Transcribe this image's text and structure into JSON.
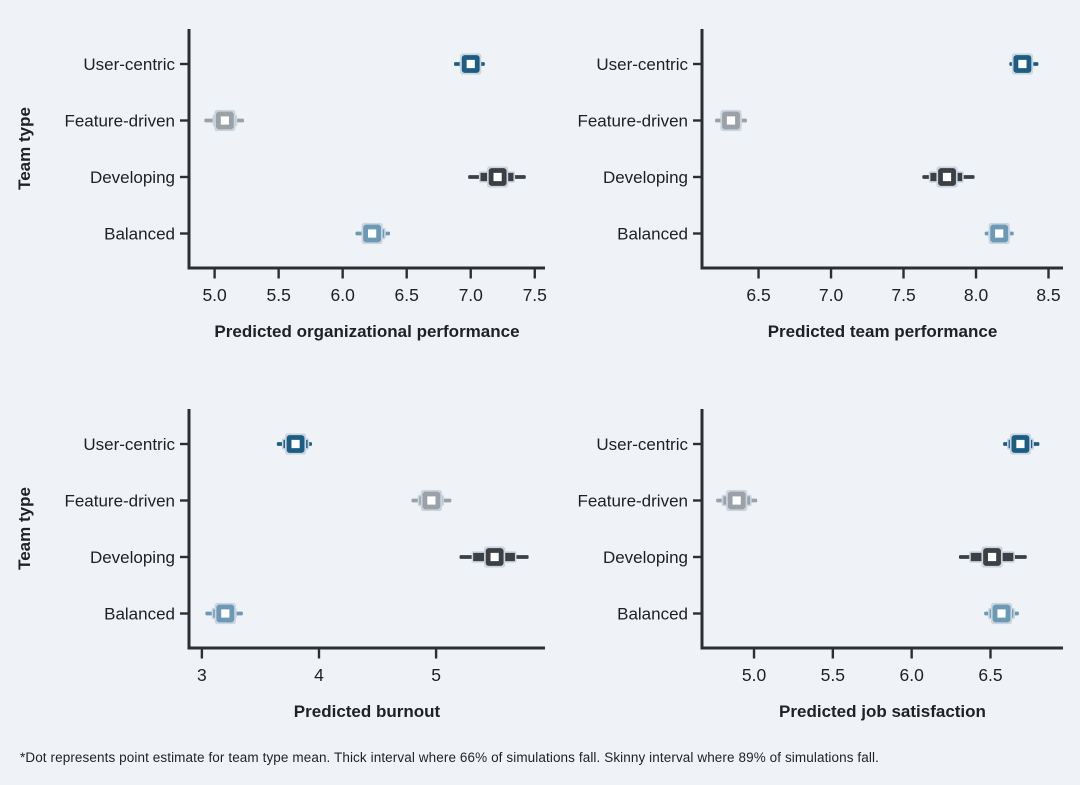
{
  "page": {
    "background": "#eff3f7",
    "y_axis_label": "Team type",
    "footnote": "*Dot represents point estimate for team type mean. Thick interval where 66% of simulations fall. Skinny interval where 89% of simulations fall."
  },
  "palette": {
    "User-centric": "#1c5d84",
    "Feature-driven": "#9ba1a7",
    "Developing": "#3c4044",
    "Balanced": "#6c99b6"
  },
  "style_colors": {
    "marker_halo": "#cad5e0",
    "marker_center_fill": "#ffffff",
    "axis": "#2b2e32",
    "text": "#202124"
  },
  "chart_data": [
    {
      "type": "pointinterval",
      "position": "top-left",
      "xlabel": "Predicted organizational performance",
      "show_y_axis_label": true,
      "ylabel": "Team type",
      "categories": [
        "User-centric",
        "Feature-driven",
        "Developing",
        "Balanced"
      ],
      "xlim": [
        4.8,
        7.58
      ],
      "xticks": [
        {
          "value": 5.0,
          "label": "5.0"
        },
        {
          "value": 5.5,
          "label": "5.5"
        },
        {
          "value": 6.0,
          "label": "6.0"
        },
        {
          "value": 6.5,
          "label": "6.5"
        },
        {
          "value": 7.0,
          "label": "7.0"
        },
        {
          "value": 7.5,
          "label": "7.5"
        }
      ],
      "points": [
        {
          "team": "User-centric",
          "estimate": 7.0,
          "interval_66": [
            6.92,
            7.07
          ],
          "interval_89": [
            6.87,
            7.11
          ]
        },
        {
          "team": "Feature-driven",
          "estimate": 5.08,
          "interval_66": [
            4.99,
            5.17
          ],
          "interval_89": [
            4.92,
            5.23
          ]
        },
        {
          "team": "Developing",
          "estimate": 7.21,
          "interval_66": [
            7.07,
            7.34
          ],
          "interval_89": [
            6.98,
            7.43
          ]
        },
        {
          "team": "Balanced",
          "estimate": 6.23,
          "interval_66": [
            6.16,
            6.33
          ],
          "interval_89": [
            6.1,
            6.37
          ]
        }
      ]
    },
    {
      "type": "pointinterval",
      "position": "top-right",
      "xlabel": "Predicted team performance",
      "show_y_axis_label": false,
      "categories": [
        "User-centric",
        "Feature-driven",
        "Developing",
        "Balanced"
      ],
      "xlim": [
        6.11,
        8.6
      ],
      "xticks": [
        {
          "value": 6.5,
          "label": "6.5"
        },
        {
          "value": 7.0,
          "label": "7.0"
        },
        {
          "value": 7.5,
          "label": "7.5"
        },
        {
          "value": 8.0,
          "label": "8.0"
        },
        {
          "value": 8.5,
          "label": "8.5"
        }
      ],
      "points": [
        {
          "team": "User-centric",
          "estimate": 8.32,
          "interval_66": [
            8.26,
            8.39
          ],
          "interval_89": [
            8.23,
            8.43
          ]
        },
        {
          "team": "Feature-driven",
          "estimate": 6.31,
          "interval_66": [
            6.25,
            6.38
          ],
          "interval_89": [
            6.2,
            6.42
          ]
        },
        {
          "team": "Developing",
          "estimate": 7.8,
          "interval_66": [
            7.68,
            7.91
          ],
          "interval_89": [
            7.63,
            7.99
          ]
        },
        {
          "team": "Balanced",
          "estimate": 8.16,
          "interval_66": [
            8.09,
            8.23
          ],
          "interval_89": [
            8.06,
            8.26
          ]
        }
      ]
    },
    {
      "type": "pointinterval",
      "position": "bottom-left",
      "xlabel": "Predicted burnout",
      "show_y_axis_label": true,
      "ylabel": "Team type",
      "categories": [
        "User-centric",
        "Feature-driven",
        "Developing",
        "Balanced"
      ],
      "xlim": [
        2.89,
        5.93
      ],
      "xticks": [
        {
          "value": 3,
          "label": "3"
        },
        {
          "value": 4,
          "label": "4"
        },
        {
          "value": 5,
          "label": "5"
        }
      ],
      "points": [
        {
          "team": "User-centric",
          "estimate": 3.8,
          "interval_66": [
            3.69,
            3.91
          ],
          "interval_89": [
            3.64,
            3.94
          ]
        },
        {
          "team": "Feature-driven",
          "estimate": 4.96,
          "interval_66": [
            4.85,
            5.06
          ],
          "interval_89": [
            4.79,
            5.13
          ]
        },
        {
          "team": "Developing",
          "estimate": 5.5,
          "interval_66": [
            5.31,
            5.68
          ],
          "interval_89": [
            5.2,
            5.79
          ]
        },
        {
          "team": "Balanced",
          "estimate": 3.2,
          "interval_66": [
            3.09,
            3.29
          ],
          "interval_89": [
            3.03,
            3.35
          ]
        }
      ]
    },
    {
      "type": "pointinterval",
      "position": "bottom-right",
      "xlabel": "Predicted job satisfaction",
      "show_y_axis_label": false,
      "categories": [
        "User-centric",
        "Feature-driven",
        "Developing",
        "Balanced"
      ],
      "xlim": [
        4.67,
        6.96
      ],
      "xticks": [
        {
          "value": 5.0,
          "label": "5.0"
        },
        {
          "value": 5.5,
          "label": "5.5"
        },
        {
          "value": 6.0,
          "label": "6.0"
        },
        {
          "value": 6.5,
          "label": "6.5"
        }
      ],
      "points": [
        {
          "team": "User-centric",
          "estimate": 6.69,
          "interval_66": [
            6.61,
            6.77
          ],
          "interval_89": [
            6.58,
            6.81
          ]
        },
        {
          "team": "Feature-driven",
          "estimate": 4.89,
          "interval_66": [
            4.8,
            4.98
          ],
          "interval_89": [
            4.76,
            5.02
          ]
        },
        {
          "team": "Developing",
          "estimate": 6.51,
          "interval_66": [
            6.37,
            6.65
          ],
          "interval_89": [
            6.3,
            6.73
          ]
        },
        {
          "team": "Balanced",
          "estimate": 6.57,
          "interval_66": [
            6.49,
            6.65
          ],
          "interval_89": [
            6.46,
            6.68
          ]
        }
      ]
    }
  ]
}
